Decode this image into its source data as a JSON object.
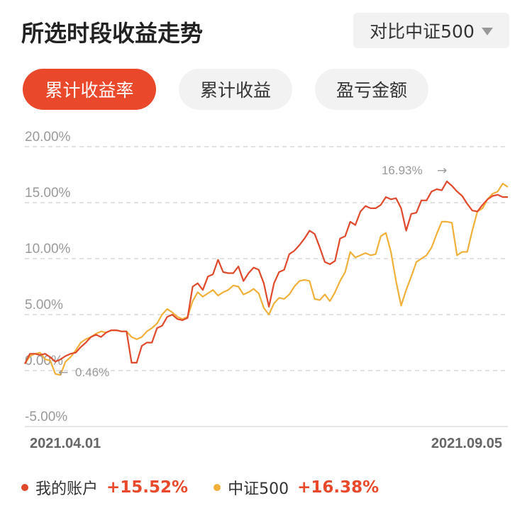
{
  "header": {
    "title": "所选时段收益走势",
    "compare_label": "对比中证500"
  },
  "tabs": [
    {
      "label": "累计收益率",
      "active": true
    },
    {
      "label": "累计收益",
      "active": false
    },
    {
      "label": "盈亏金额",
      "active": false
    }
  ],
  "legend": [
    {
      "name": "我的账户",
      "value": "+15.52%",
      "color": "#e0492b"
    },
    {
      "name": "中证500",
      "value": "+16.38%",
      "color": "#f0b03a"
    }
  ],
  "chart_data": {
    "type": "line",
    "ylim": [
      -5,
      20
    ],
    "yticks": [
      "20.00%",
      "15.00%",
      "10.00%",
      "5.00%",
      "0.00%",
      "-5.00%"
    ],
    "x_start_label": "2021.04.01",
    "x_end_label": "2021.09.05",
    "annotations": {
      "max_label": "16.93%",
      "min_label": "0.46%"
    },
    "series": [
      {
        "name": "我的账户",
        "color": "#e0492b",
        "values": [
          0.6,
          1.5,
          1.5,
          1.4,
          1.5,
          1.2,
          0.8,
          1.0,
          1.3,
          1.5,
          1.6,
          2.1,
          2.5,
          3.0,
          3.2,
          3.0,
          3.4,
          3.6,
          3.6,
          3.5,
          3.5,
          0.7,
          0.7,
          2.2,
          2.5,
          2.5,
          3.8,
          4.0,
          4.8,
          5.0,
          4.6,
          4.5,
          4.7,
          7.5,
          7.8,
          7.2,
          8.4,
          8.6,
          9.9,
          8.8,
          8.7,
          8.7,
          9.3,
          8.0,
          8.7,
          9.2,
          9.0,
          7.8,
          5.7,
          7.8,
          8.8,
          9.0,
          10.4,
          10.7,
          11.2,
          11.8,
          12.5,
          12.2,
          11.0,
          9.7,
          9.5,
          9.8,
          11.8,
          12.0,
          13.3,
          13.0,
          14.2,
          14.7,
          14.5,
          14.5,
          14.8,
          15.5,
          15.3,
          15.4,
          14.5,
          12.5,
          14.0,
          14.1,
          15.2,
          15.2,
          16.0,
          16.2,
          16.1,
          16.9,
          16.5,
          16.0,
          15.6,
          14.9,
          14.3,
          14.2,
          14.8,
          15.3,
          15.6,
          15.7,
          15.5,
          15.5
        ]
      },
      {
        "name": "中证500",
        "color": "#f0b03a",
        "values": [
          0.6,
          1.3,
          1.5,
          1.6,
          1.0,
          0.9,
          -0.3,
          -0.4,
          0.8,
          1.2,
          1.8,
          2.5,
          2.8,
          3.0,
          3.3,
          3.5,
          3.4,
          3.6,
          3.6,
          3.5,
          3.5,
          3.0,
          2.8,
          3.0,
          3.5,
          3.8,
          4.2,
          5.0,
          5.5,
          5.2,
          4.8,
          4.6,
          4.8,
          6.2,
          7.0,
          6.6,
          6.9,
          7.2,
          6.7,
          7.0,
          7.2,
          7.6,
          7.5,
          6.8,
          7.0,
          7.3,
          6.9,
          5.6,
          5.0,
          6.0,
          6.5,
          6.4,
          6.8,
          7.5,
          8.0,
          8.1,
          8.0,
          6.4,
          6.3,
          6.8,
          6.2,
          7.0,
          8.0,
          8.8,
          10.6,
          10.1,
          10.3,
          10.5,
          10.3,
          10.4,
          12.0,
          12.3,
          10.6,
          8.0,
          5.8,
          7.2,
          8.4,
          9.7,
          10.0,
          10.3,
          11.0,
          12.2,
          13.3,
          13.3,
          13.2,
          10.3,
          10.6,
          10.6,
          12.5,
          14.2,
          14.5,
          15.3,
          15.8,
          16.0,
          16.7,
          16.4
        ]
      }
    ]
  }
}
